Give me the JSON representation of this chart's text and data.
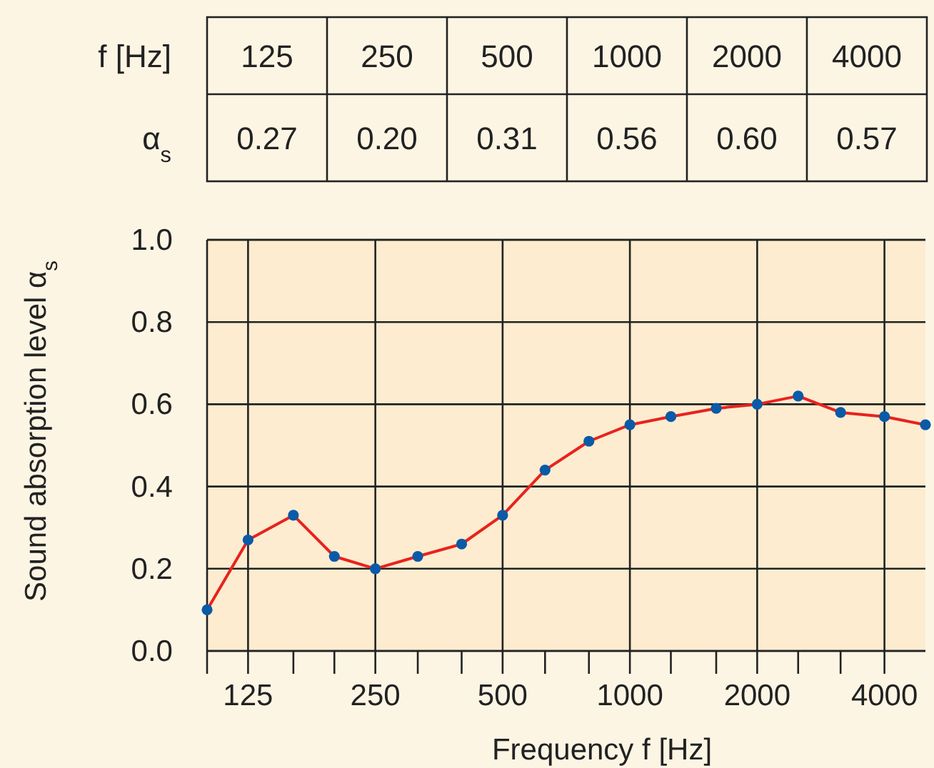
{
  "chart_data": [
    {
      "type": "other",
      "annotations": [
        "f [Hz]",
        "125",
        "250",
        "500",
        "1000",
        "2000",
        "4000",
        "α$_{s}$",
        "0.27",
        "0.20",
        "0.31",
        "0.56",
        "0.60",
        "0.57"
      ]
    },
    {
      "type": "line",
      "xlabel": "Frequency f [Hz]",
      "ylabel": "Sound absorption level α$_{s}$",
      "x": [
        100,
        125,
        160,
        200,
        250,
        315,
        400,
        500,
        630,
        800,
        1000,
        1250,
        1600,
        2000,
        2500,
        3150,
        4000,
        5000
      ],
      "series": [
        {
          "color": "#e8221e",
          "values": [
            0.1,
            0.27,
            0.33,
            0.23,
            0.2,
            0.23,
            0.26,
            0.33,
            0.44,
            0.51,
            0.55,
            0.57,
            0.59,
            0.6,
            0.62,
            0.58,
            0.57,
            0.55
          ]
        }
      ],
      "marker": "circle",
      "log": "x",
      "grid": true,
      "xlim": [
        100,
        5000
      ],
      "xticks": [
        {
          "value": 100,
          "label": null
        },
        125,
        {
          "value": 160,
          "label": null
        },
        {
          "value": 200,
          "label": null
        },
        250,
        {
          "value": 315,
          "label": null
        },
        {
          "value": 400,
          "label": null
        },
        500,
        {
          "value": 630,
          "label": null
        },
        {
          "value": 800,
          "label": null
        },
        1000,
        {
          "value": 1250,
          "label": null
        },
        {
          "value": 1600,
          "label": null
        },
        2000,
        {
          "value": 2500,
          "label": null
        },
        {
          "value": 3150,
          "label": null
        },
        4000
      ],
      "ylim": [
        0,
        1
      ],
      "yticks": [
        {
          "value": 0,
          "label": "0.0"
        },
        {
          "value": 0.2,
          "label": "0.2"
        },
        {
          "value": 0.4,
          "label": "0.4"
        },
        {
          "value": 0.6,
          "label": "0.6"
        },
        {
          "value": 0.8,
          "label": "0.8"
        },
        {
          "value": 1,
          "label": "1.0"
        }
      ]
    }
  ]
}
